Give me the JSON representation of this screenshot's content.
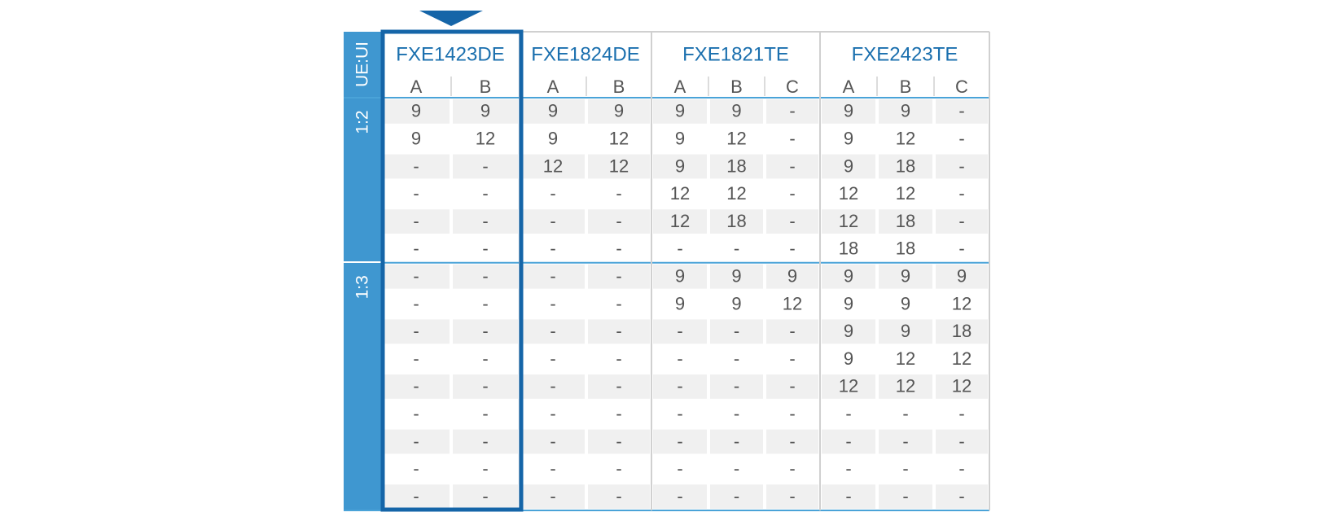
{
  "header": {
    "corner": "UE:UI",
    "models": [
      {
        "name": "FXE1423DE",
        "columns": [
          "A",
          "B"
        ]
      },
      {
        "name": "FXE1824DE",
        "columns": [
          "A",
          "B"
        ]
      },
      {
        "name": "FXE1821TE",
        "columns": [
          "A",
          "B",
          "C"
        ]
      },
      {
        "name": "FXE2423TE",
        "columns": [
          "A",
          "B",
          "C"
        ]
      }
    ]
  },
  "groups": [
    {
      "label": "1:2",
      "rows": [
        [
          9,
          9,
          9,
          9,
          9,
          9,
          "-",
          9,
          9,
          "-"
        ],
        [
          9,
          12,
          9,
          12,
          9,
          12,
          "-",
          9,
          12,
          "-"
        ],
        [
          "-",
          "-",
          12,
          12,
          9,
          18,
          "-",
          9,
          18,
          "-"
        ],
        [
          "-",
          "-",
          "-",
          "-",
          12,
          12,
          "-",
          12,
          12,
          "-"
        ],
        [
          "-",
          "-",
          "-",
          "-",
          12,
          18,
          "-",
          12,
          18,
          "-"
        ],
        [
          "-",
          "-",
          "-",
          "-",
          "-",
          "-",
          "-",
          18,
          18,
          "-"
        ]
      ]
    },
    {
      "label": "1:3",
      "rows": [
        [
          "-",
          "-",
          "-",
          "-",
          9,
          9,
          9,
          9,
          9,
          9
        ],
        [
          "-",
          "-",
          "-",
          "-",
          9,
          9,
          12,
          9,
          9,
          12
        ],
        [
          "-",
          "-",
          "-",
          "-",
          "-",
          "-",
          "-",
          9,
          9,
          18
        ],
        [
          "-",
          "-",
          "-",
          "-",
          "-",
          "-",
          "-",
          9,
          12,
          12
        ],
        [
          "-",
          "-",
          "-",
          "-",
          "-",
          "-",
          "-",
          12,
          12,
          12
        ],
        [
          "-",
          "-",
          "-",
          "-",
          "-",
          "-",
          "-",
          "-",
          "-",
          "-"
        ],
        [
          "-",
          "-",
          "-",
          "-",
          "-",
          "-",
          "-",
          "-",
          "-",
          "-"
        ],
        [
          "-",
          "-",
          "-",
          "-",
          "-",
          "-",
          "-",
          "-",
          "-",
          "-"
        ],
        [
          "-",
          "-",
          "-",
          "-",
          "-",
          "-",
          "-",
          "-",
          "-",
          "-"
        ]
      ]
    }
  ]
}
